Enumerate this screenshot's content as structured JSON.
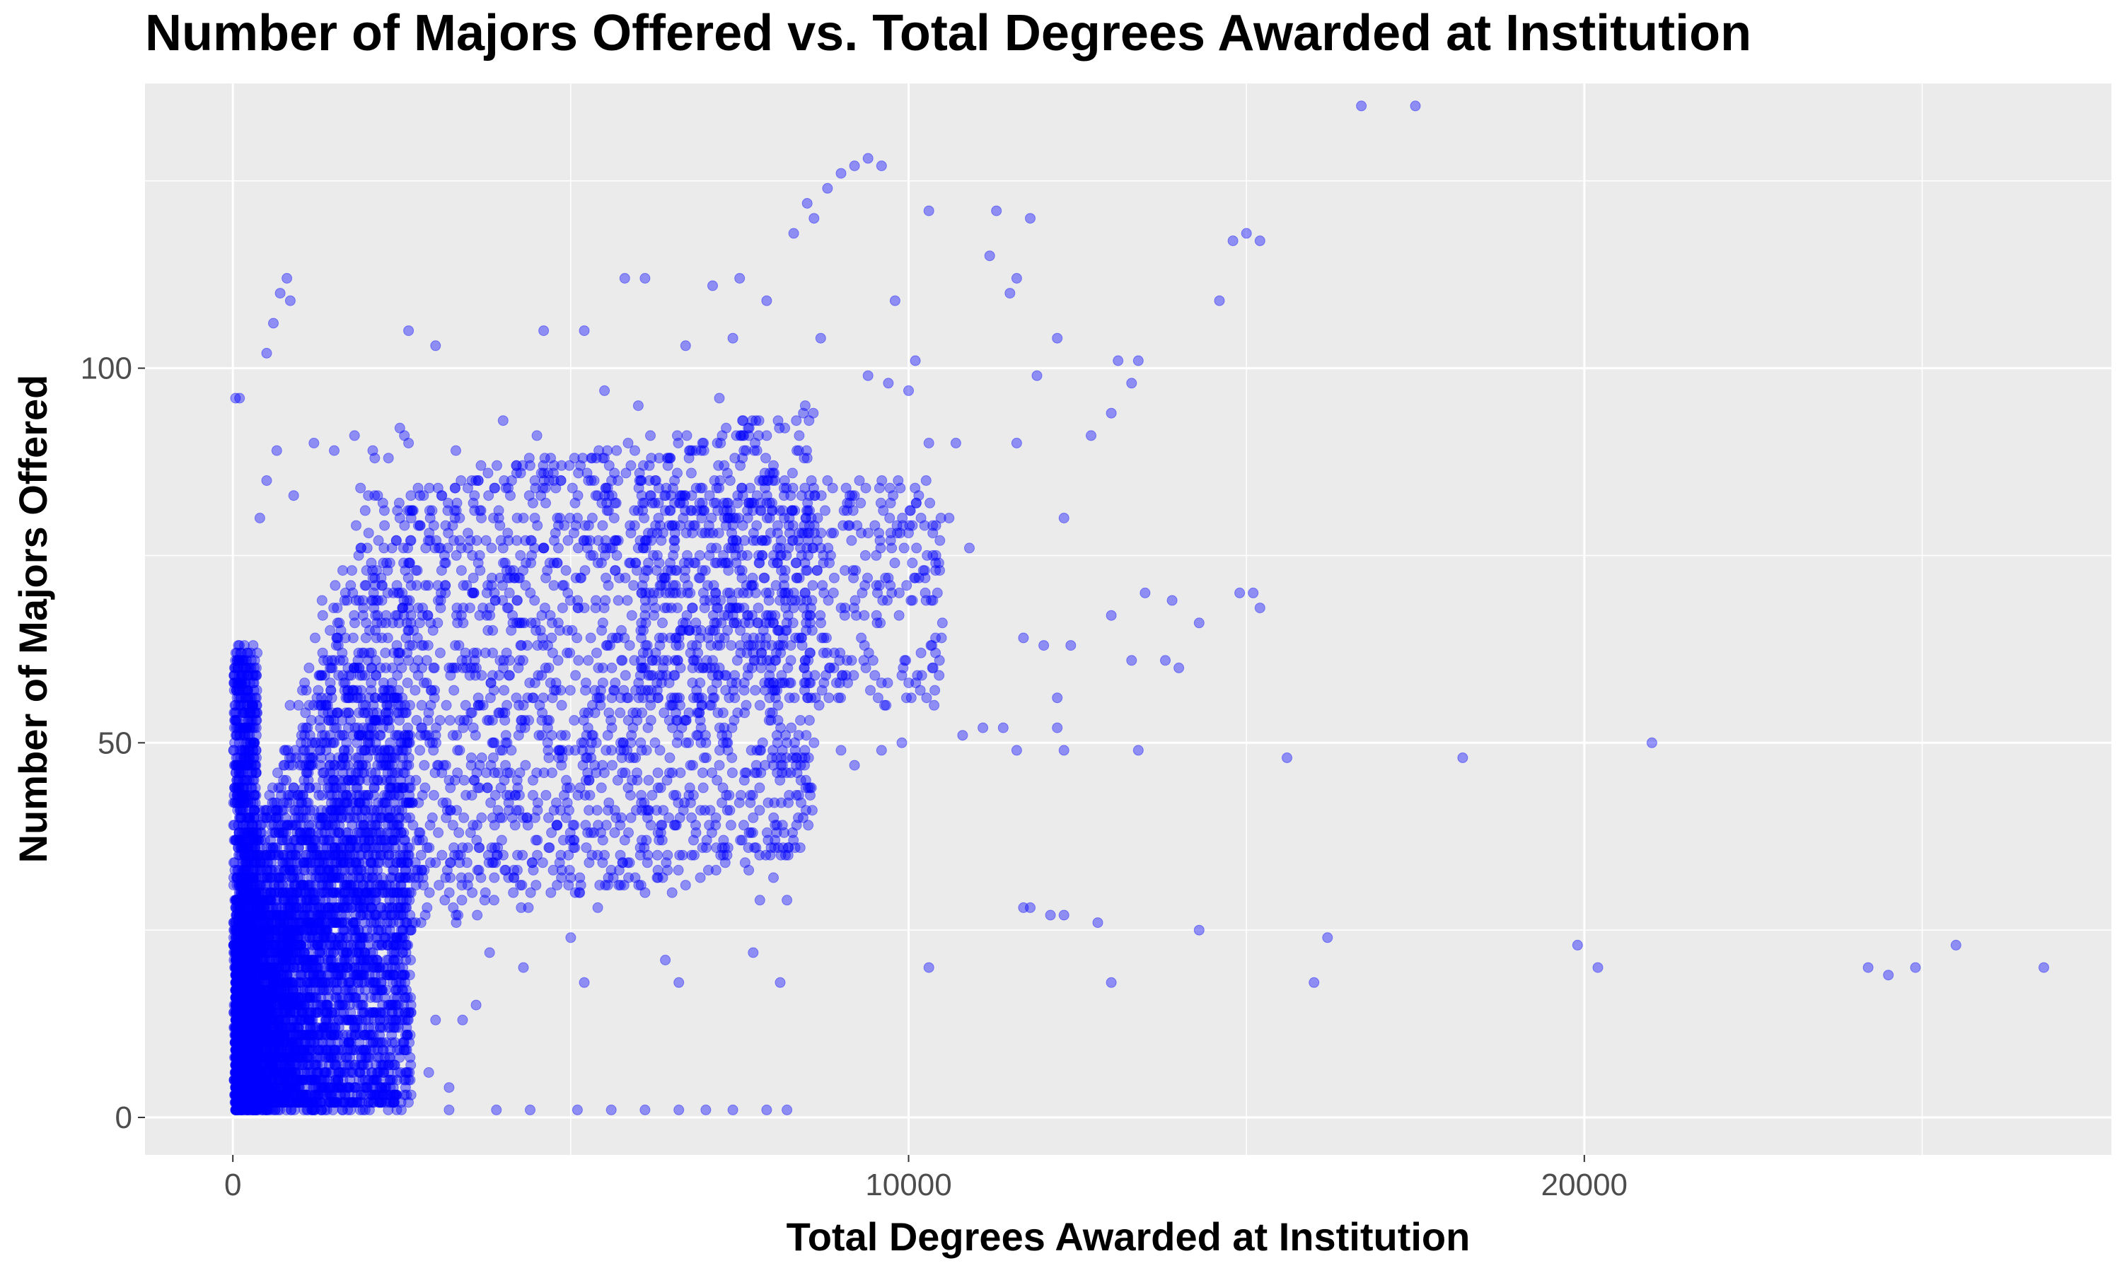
{
  "chart_data": {
    "type": "scatter",
    "title": "Number of Majors Offered vs. Total Degrees Awarded at Institution",
    "xlabel": "Total Degrees Awarded at Institution",
    "ylabel": "Number of Majors Offered",
    "xlim": [
      -1300,
      27800
    ],
    "ylim": [
      -5,
      138
    ],
    "x_ticks": [
      0,
      10000,
      20000
    ],
    "x_tick_labels": [
      "0",
      "10000",
      "20000"
    ],
    "y_ticks": [
      0,
      50,
      100
    ],
    "y_tick_labels": [
      "0",
      "50",
      "100"
    ],
    "grid": true,
    "panel_background": "#ebebeb",
    "point_color": "#0000ff",
    "point_alpha": 0.4,
    "series": [
      {
        "values": [
          {
            "x": 16700,
            "y": 135
          },
          {
            "x": 17500,
            "y": 135
          },
          {
            "x": 9200,
            "y": 127
          },
          {
            "x": 9400,
            "y": 128
          },
          {
            "x": 9600,
            "y": 127
          },
          {
            "x": 8500,
            "y": 122
          },
          {
            "x": 8800,
            "y": 124
          },
          {
            "x": 9000,
            "y": 126
          },
          {
            "x": 10300,
            "y": 121
          },
          {
            "x": 11300,
            "y": 121
          },
          {
            "x": 11800,
            "y": 120
          },
          {
            "x": 15000,
            "y": 118
          },
          {
            "x": 15200,
            "y": 117
          },
          {
            "x": 14800,
            "y": 117
          },
          {
            "x": 11600,
            "y": 112
          },
          {
            "x": 11200,
            "y": 115
          },
          {
            "x": 11500,
            "y": 110
          },
          {
            "x": 14600,
            "y": 109
          },
          {
            "x": 12200,
            "y": 104
          },
          {
            "x": 11900,
            "y": 99
          },
          {
            "x": 13100,
            "y": 101
          },
          {
            "x": 13400,
            "y": 101
          },
          {
            "x": 13300,
            "y": 98
          },
          {
            "x": 13000,
            "y": 94
          },
          {
            "x": 12700,
            "y": 91
          },
          {
            "x": 11600,
            "y": 90
          },
          {
            "x": 10900,
            "y": 76
          },
          {
            "x": 10600,
            "y": 80
          },
          {
            "x": 12300,
            "y": 80
          },
          {
            "x": 13500,
            "y": 70
          },
          {
            "x": 13900,
            "y": 69
          },
          {
            "x": 14900,
            "y": 70
          },
          {
            "x": 15100,
            "y": 70
          },
          {
            "x": 15200,
            "y": 68
          },
          {
            "x": 14300,
            "y": 66
          },
          {
            "x": 11700,
            "y": 64
          },
          {
            "x": 12000,
            "y": 63
          },
          {
            "x": 12400,
            "y": 63
          },
          {
            "x": 13000,
            "y": 67
          },
          {
            "x": 13300,
            "y": 61
          },
          {
            "x": 13800,
            "y": 61
          },
          {
            "x": 14000,
            "y": 60
          },
          {
            "x": 12200,
            "y": 56
          },
          {
            "x": 12200,
            "y": 52
          },
          {
            "x": 11400,
            "y": 52
          },
          {
            "x": 11100,
            "y": 52
          },
          {
            "x": 10800,
            "y": 51
          },
          {
            "x": 11600,
            "y": 49
          },
          {
            "x": 12300,
            "y": 49
          },
          {
            "x": 13400,
            "y": 49
          },
          {
            "x": 15600,
            "y": 48
          },
          {
            "x": 18200,
            "y": 48
          },
          {
            "x": 21000,
            "y": 50
          },
          {
            "x": 11700,
            "y": 28
          },
          {
            "x": 11800,
            "y": 28
          },
          {
            "x": 12100,
            "y": 27
          },
          {
            "x": 12300,
            "y": 27
          },
          {
            "x": 12800,
            "y": 26
          },
          {
            "x": 14300,
            "y": 25
          },
          {
            "x": 16200,
            "y": 24
          },
          {
            "x": 16000,
            "y": 18
          },
          {
            "x": 13000,
            "y": 18
          },
          {
            "x": 10300,
            "y": 20
          },
          {
            "x": 19900,
            "y": 23
          },
          {
            "x": 20200,
            "y": 20
          },
          {
            "x": 24200,
            "y": 20
          },
          {
            "x": 24500,
            "y": 19
          },
          {
            "x": 24900,
            "y": 20
          },
          {
            "x": 25500,
            "y": 23
          },
          {
            "x": 26800,
            "y": 20
          },
          {
            "x": 2300,
            "y": 1
          },
          {
            "x": 3200,
            "y": 1
          },
          {
            "x": 3900,
            "y": 1
          },
          {
            "x": 4400,
            "y": 1
          },
          {
            "x": 5100,
            "y": 1
          },
          {
            "x": 5600,
            "y": 1
          },
          {
            "x": 6100,
            "y": 1
          },
          {
            "x": 6600,
            "y": 1
          },
          {
            "x": 7000,
            "y": 1
          },
          {
            "x": 7400,
            "y": 1
          },
          {
            "x": 7900,
            "y": 1
          },
          {
            "x": 8200,
            "y": 1
          },
          {
            "x": 7700,
            "y": 22
          },
          {
            "x": 8100,
            "y": 18
          },
          {
            "x": 7800,
            "y": 29
          },
          {
            "x": 8000,
            "y": 32
          },
          {
            "x": 8200,
            "y": 29
          },
          {
            "x": 40,
            "y": 96
          },
          {
            "x": 100,
            "y": 96
          },
          {
            "x": 600,
            "y": 106
          },
          {
            "x": 700,
            "y": 110
          },
          {
            "x": 800,
            "y": 112
          },
          {
            "x": 500,
            "y": 102
          },
          {
            "x": 850,
            "y": 109
          },
          {
            "x": 2600,
            "y": 105
          },
          {
            "x": 3000,
            "y": 103
          },
          {
            "x": 4600,
            "y": 105
          },
          {
            "x": 5200,
            "y": 105
          },
          {
            "x": 5800,
            "y": 112
          },
          {
            "x": 6100,
            "y": 112
          },
          {
            "x": 7100,
            "y": 111
          },
          {
            "x": 7500,
            "y": 112
          },
          {
            "x": 7900,
            "y": 109
          },
          {
            "x": 8300,
            "y": 118
          },
          {
            "x": 8600,
            "y": 120
          },
          {
            "x": 6700,
            "y": 103
          },
          {
            "x": 7200,
            "y": 96
          },
          {
            "x": 7400,
            "y": 104
          },
          {
            "x": 8700,
            "y": 104
          },
          {
            "x": 9800,
            "y": 109
          },
          {
            "x": 10100,
            "y": 101
          },
          {
            "x": 9400,
            "y": 99
          },
          {
            "x": 9700,
            "y": 98
          },
          {
            "x": 10000,
            "y": 97
          },
          {
            "x": 10300,
            "y": 90
          },
          {
            "x": 10700,
            "y": 90
          },
          {
            "x": 10400,
            "y": 73
          },
          {
            "x": 10100,
            "y": 72
          },
          {
            "x": 10000,
            "y": 78
          },
          {
            "x": 10500,
            "y": 66
          },
          {
            "x": 9700,
            "y": 72
          },
          {
            "x": 9300,
            "y": 64
          },
          {
            "x": 9900,
            "y": 59
          },
          {
            "x": 9500,
            "y": 59
          },
          {
            "x": 9100,
            "y": 58
          },
          {
            "x": 9000,
            "y": 49
          },
          {
            "x": 9600,
            "y": 49
          },
          {
            "x": 9900,
            "y": 50
          },
          {
            "x": 9200,
            "y": 47
          },
          {
            "x": 8600,
            "y": 50
          },
          {
            "x": 8200,
            "y": 50
          },
          {
            "x": 8000,
            "y": 47
          },
          {
            "x": 7600,
            "y": 46
          },
          {
            "x": 7200,
            "y": 47
          },
          {
            "x": 7000,
            "y": 50
          },
          {
            "x": 6700,
            "y": 31
          },
          {
            "x": 6500,
            "y": 30
          },
          {
            "x": 6100,
            "y": 30
          },
          {
            "x": 6400,
            "y": 21
          },
          {
            "x": 6600,
            "y": 18
          },
          {
            "x": 5800,
            "y": 37
          },
          {
            "x": 5400,
            "y": 28
          },
          {
            "x": 5200,
            "y": 18
          },
          {
            "x": 5000,
            "y": 24
          },
          {
            "x": 4300,
            "y": 20
          },
          {
            "x": 3800,
            "y": 22
          },
          {
            "x": 3200,
            "y": 4
          },
          {
            "x": 2900,
            "y": 6
          },
          {
            "x": 2600,
            "y": 5
          },
          {
            "x": 2400,
            "y": 10
          },
          {
            "x": 3000,
            "y": 13
          },
          {
            "x": 3400,
            "y": 13
          },
          {
            "x": 3600,
            "y": 15
          },
          {
            "x": 2100,
            "y": 3
          },
          {
            "x": 1900,
            "y": 3
          },
          {
            "x": 1500,
            "y": 2
          },
          {
            "x": 1200,
            "y": 2
          },
          {
            "x": 2600,
            "y": 90
          },
          {
            "x": 3300,
            "y": 89
          },
          {
            "x": 4000,
            "y": 93
          },
          {
            "x": 4500,
            "y": 91
          },
          {
            "x": 5500,
            "y": 97
          },
          {
            "x": 6000,
            "y": 95
          },
          {
            "x": 6800,
            "y": 89
          },
          {
            "x": 7300,
            "y": 92
          },
          {
            "x": 8000,
            "y": 87
          },
          {
            "x": 8500,
            "y": 88
          },
          {
            "x": 8800,
            "y": 85
          },
          {
            "x": 9200,
            "y": 83
          },
          {
            "x": 8700,
            "y": 76
          },
          {
            "x": 8900,
            "y": 72
          },
          {
            "x": 8300,
            "y": 70
          },
          {
            "x": 8000,
            "y": 66
          },
          {
            "x": 7600,
            "y": 64
          },
          {
            "x": 7300,
            "y": 74
          },
          {
            "x": 6800,
            "y": 78
          },
          {
            "x": 6300,
            "y": 82
          },
          {
            "x": 5700,
            "y": 85
          },
          {
            "x": 5100,
            "y": 80
          },
          {
            "x": 4600,
            "y": 76
          },
          {
            "x": 4100,
            "y": 72
          },
          {
            "x": 3700,
            "y": 68
          },
          {
            "x": 3200,
            "y": 60
          },
          {
            "x": 2800,
            "y": 52
          },
          {
            "x": 2400,
            "y": 46
          },
          {
            "x": 2000,
            "y": 40
          },
          {
            "x": 1600,
            "y": 34
          },
          {
            "x": 1300,
            "y": 28
          },
          {
            "x": 1000,
            "y": 22
          },
          {
            "x": 700,
            "y": 16
          },
          {
            "x": 500,
            "y": 12
          },
          {
            "x": 300,
            "y": 8
          },
          {
            "x": 150,
            "y": 4
          },
          {
            "x": 80,
            "y": 63
          },
          {
            "x": 120,
            "y": 55
          },
          {
            "x": 200,
            "y": 48
          },
          {
            "x": 250,
            "y": 40
          },
          {
            "x": 180,
            "y": 30
          },
          {
            "x": 100,
            "y": 20
          },
          {
            "x": 60,
            "y": 10
          },
          {
            "x": 30,
            "y": 2
          },
          {
            "x": 400,
            "y": 80
          },
          {
            "x": 500,
            "y": 85
          },
          {
            "x": 650,
            "y": 89
          },
          {
            "x": 900,
            "y": 83
          },
          {
            "x": 1200,
            "y": 90
          },
          {
            "x": 1500,
            "y": 89
          },
          {
            "x": 1800,
            "y": 91
          },
          {
            "x": 2100,
            "y": 88
          }
        ]
      }
    ]
  }
}
